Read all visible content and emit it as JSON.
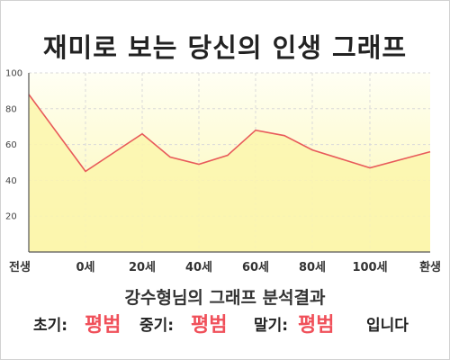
{
  "title": "재미로 보는 당신의 인생 그래프",
  "subtitle": "강수형님의 그래프 분석결과",
  "results": {
    "early_label": "초기:",
    "early_value": "평범",
    "mid_label": "중기:",
    "mid_value": "평범",
    "late_label": "말기:",
    "late_value": "평범",
    "suffix": "입니다"
  },
  "colors": {
    "line": "#e85a5a",
    "fill": "#fbf8b6",
    "accent": "#f0505a"
  },
  "chart_data": {
    "type": "area",
    "grid": true,
    "x_tick_labels": [
      "전생",
      "0세",
      "20세",
      "40세",
      "60세",
      "80세",
      "100세",
      "환생"
    ],
    "y_ticks": [
      20,
      40,
      60,
      80,
      100
    ],
    "ylim": [
      0,
      100
    ],
    "series": [
      {
        "points": [
          {
            "x": "전생",
            "y": 88
          },
          {
            "x": "0세",
            "y": 45
          },
          {
            "x": "20세",
            "y": 66
          },
          {
            "x": "30세",
            "y": 53
          },
          {
            "x": "40세",
            "y": 49
          },
          {
            "x": "50세",
            "y": 54
          },
          {
            "x": "60세",
            "y": 68
          },
          {
            "x": "70세",
            "y": 65
          },
          {
            "x": "80세",
            "y": 57
          },
          {
            "x": "100세",
            "y": 47
          },
          {
            "x": "환생",
            "y": 56
          }
        ]
      }
    ]
  }
}
